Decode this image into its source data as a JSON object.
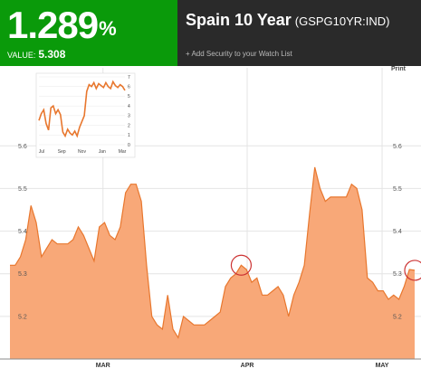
{
  "header": {
    "change_value": "1.289",
    "change_unit": "%",
    "value_label": "VALUE:",
    "value_number": "5.308",
    "title": "Spain 10 Year",
    "ticker": "(GSPG10YR:IND)",
    "add_watchlist": "+ Add Security to your Watch List"
  },
  "toolbar": {
    "print_label": "Print"
  },
  "colors": {
    "green": "#0a9a0a",
    "dark": "#2a2a2a",
    "area_fill": "#f8a878",
    "area_line": "#e8772e",
    "marker": "#cc3333"
  },
  "chart_data": [
    {
      "type": "area",
      "ylim": [
        5.1,
        5.73
      ],
      "yticks": [
        5.2,
        5.3,
        5.4,
        5.5,
        5.6
      ],
      "ytick_labels": [
        "5.2",
        "5.3",
        "5.4",
        "5.5",
        "5.6"
      ],
      "xticks": [
        {
          "x": 20,
          "label": "MAR"
        },
        {
          "x": 51,
          "label": "APR"
        },
        {
          "x": 80,
          "label": "MAY"
        }
      ],
      "xlim": [
        0,
        87
      ],
      "values": [
        5.32,
        5.32,
        5.34,
        5.38,
        5.46,
        5.42,
        5.34,
        5.36,
        5.38,
        5.37,
        5.37,
        5.37,
        5.38,
        5.41,
        5.39,
        5.36,
        5.33,
        5.41,
        5.42,
        5.39,
        5.38,
        5.41,
        5.49,
        5.51,
        5.51,
        5.47,
        5.32,
        5.2,
        5.18,
        5.17,
        5.25,
        5.17,
        5.15,
        5.2,
        5.19,
        5.18,
        5.18,
        5.18,
        5.19,
        5.2,
        5.21,
        5.27,
        5.29,
        5.3,
        5.32,
        5.31,
        5.28,
        5.29,
        5.25,
        5.25,
        5.26,
        5.27,
        5.25,
        5.2,
        5.25,
        5.28,
        5.32,
        5.44,
        5.55,
        5.5,
        5.47,
        5.48,
        5.48,
        5.48,
        5.48,
        5.51,
        5.5,
        5.45,
        5.29,
        5.28,
        5.26,
        5.26,
        5.24,
        5.25,
        5.24,
        5.27,
        5.31,
        5.308
      ],
      "markers": [
        44,
        77
      ]
    },
    {
      "type": "line",
      "ylim": [
        0,
        7
      ],
      "yticks": [
        0,
        1,
        2,
        3,
        4,
        5,
        6,
        7
      ],
      "ytick_labels": [
        "0",
        "1",
        "2",
        "3",
        "4",
        "5",
        "6",
        "7"
      ],
      "xtick_labels": [
        "Jul",
        "Sep",
        "Nov",
        "Jan",
        "Mar"
      ],
      "values": [
        2.5,
        3.2,
        3.6,
        2.2,
        1.5,
        3.8,
        4.0,
        3.2,
        3.6,
        3.1,
        1.3,
        0.9,
        1.6,
        1.2,
        1.0,
        1.4,
        0.9,
        1.8,
        2.4,
        3.0,
        5.5,
        6.2,
        6.0,
        6.4,
        5.8,
        6.3,
        6.1,
        5.9,
        6.4,
        6.0,
        5.8,
        6.5,
        6.1,
        5.9,
        6.2,
        6.0,
        5.6
      ]
    }
  ]
}
